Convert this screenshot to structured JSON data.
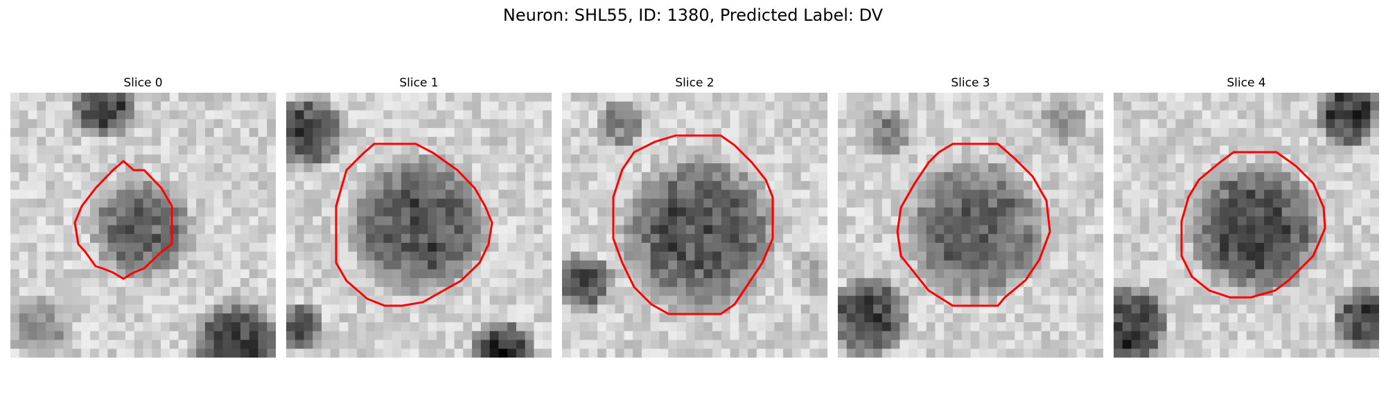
{
  "figure": {
    "title": "Neuron: SHL55, ID: 1380, Predicted Label: DV"
  },
  "slices": [
    {
      "label": "Slice 0"
    },
    {
      "label": "Slice 1"
    },
    {
      "label": "Slice 2"
    },
    {
      "label": "Slice 3"
    },
    {
      "label": "Slice 4"
    }
  ],
  "colors": {
    "contour": "#ff0000",
    "image_colormap": "grayscale"
  }
}
